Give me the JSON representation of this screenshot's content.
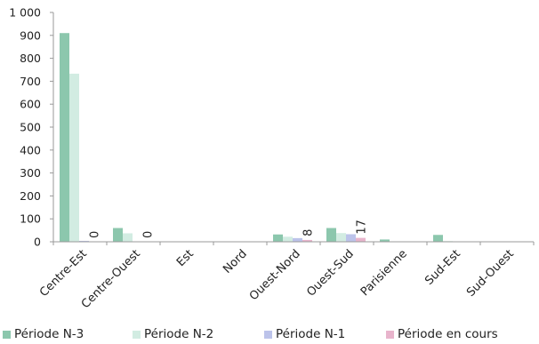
{
  "chart_data": {
    "type": "bar",
    "categories": [
      "Centre-Est",
      "Centre-Ouest",
      "Est",
      "Nord",
      "Ouest-Nord",
      "Ouest-Sud",
      "Parisienne",
      "Sud-Est",
      "Sud-Ouest"
    ],
    "series": [
      {
        "name": "Période N-3",
        "color": "#8cc7ad",
        "values": [
          910,
          60,
          0,
          0,
          32,
          60,
          10,
          30,
          0
        ]
      },
      {
        "name": "Période N-2",
        "color": "#d2ece2",
        "values": [
          733,
          37,
          0,
          0,
          22,
          38,
          2,
          3,
          0
        ]
      },
      {
        "name": "Période N-1",
        "color": "#bcc3ea",
        "values": [
          4,
          0,
          0,
          0,
          16,
          33,
          0,
          0,
          0
        ]
      },
      {
        "name": "Période en cours",
        "color": "#e8b4cc",
        "values": [
          0,
          0,
          0,
          0,
          8,
          17,
          0,
          0,
          0
        ]
      }
    ],
    "data_labels": [
      {
        "category_index": 0,
        "series_index": 3,
        "text": "0"
      },
      {
        "category_index": 1,
        "series_index": 3,
        "text": "0"
      },
      {
        "category_index": 4,
        "series_index": 3,
        "text": "8"
      },
      {
        "category_index": 5,
        "series_index": 3,
        "text": "17"
      }
    ],
    "y_ticks": [
      "0",
      "100",
      "200",
      "300",
      "400",
      "500",
      "600",
      "700",
      "800",
      "900",
      "1 000"
    ],
    "ylim": [
      0,
      1000
    ],
    "legend_position": "bottom",
    "grid": false
  }
}
